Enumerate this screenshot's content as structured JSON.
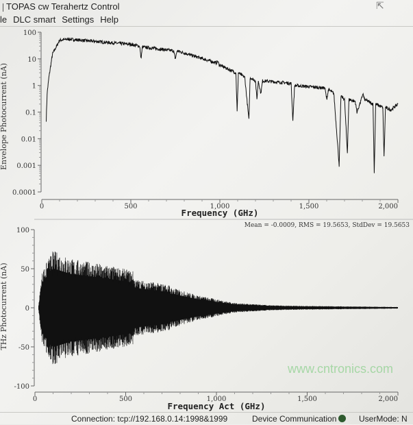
{
  "window": {
    "title": "TOPAS cw Terahertz Control"
  },
  "menu": [
    "le",
    "DLC smart",
    "Settings",
    "Help"
  ],
  "status": {
    "connection": "Connection: tcp://192.168.0.14:1998&1999",
    "device": "Device Communication",
    "usermode": "UserMode: N",
    "led_color": "#2e5a2e"
  },
  "watermark": "www.cntronics.com",
  "chart_data": [
    {
      "type": "line",
      "xlabel": "Frequency (GHz)",
      "ylabel": "Envelope Photocurrent (nA)",
      "yscale": "log",
      "xlim": [
        0,
        2000
      ],
      "ylim": [
        0.0001,
        100
      ],
      "xticks": [
        "0",
        "500",
        "1,000",
        "1,500",
        "2,000"
      ],
      "yticks": [
        "100",
        "10",
        "1",
        "0.1",
        "0.01",
        "0.001",
        "0.0001"
      ],
      "grid": false,
      "series": [
        {
          "x": [
            25,
            30,
            40,
            60,
            100,
            150,
            300,
            500,
            550,
            557,
            565,
            740,
            750,
            760,
            980,
            988,
            996,
            1050,
            1090,
            1097,
            1104,
            1140,
            1163,
            1170,
            1200,
            1208,
            1216,
            1230,
            1240,
            1400,
            1410,
            1420,
            1590,
            1600,
            1610,
            1640,
            1670,
            1680,
            1700,
            1716,
            1725,
            1760,
            1770,
            1795,
            1803,
            1812,
            1860,
            1867,
            1875,
            1915,
            1922,
            1930,
            1960,
            2000
          ],
          "y": [
            0.05,
            0.5,
            2,
            15,
            50,
            55,
            45,
            35,
            30,
            10,
            28,
            20,
            10,
            20,
            7,
            8,
            6,
            4,
            3,
            0.1,
            3,
            2,
            0.05,
            2,
            1.5,
            0.3,
            1.5,
            0.5,
            1.5,
            1.2,
            0.05,
            1,
            0.8,
            0.3,
            0.7,
            0.5,
            0.001,
            0.4,
            0.3,
            0.003,
            0.3,
            0.25,
            0.1,
            0.3,
            0.5,
            0.3,
            0.2,
            0.0005,
            0.2,
            0.15,
            0.002,
            0.15,
            0.12,
            0.2
          ]
        }
      ]
    },
    {
      "type": "area",
      "xlabel": "Frequency Act (GHz)",
      "ylabel": "THz Photocurrent (nA)",
      "xlim": [
        0,
        2000
      ],
      "ylim": [
        -100,
        100
      ],
      "xticks": [
        "0",
        "500",
        "1,000",
        "1,500",
        "2,000"
      ],
      "yticks": [
        "100",
        "50",
        "0",
        "-50",
        "-100"
      ],
      "grid": false,
      "annotation": "Mean = -0.0009, RMS = 19.5653, StdDev = 19.5653",
      "envelope": {
        "x": [
          20,
          40,
          80,
          100,
          200,
          400,
          540,
          550,
          740,
          750,
          900,
          1100,
          1300,
          1600,
          2000
        ],
        "amplitude": [
          3,
          45,
          62,
          70,
          60,
          52,
          45,
          35,
          28,
          25,
          15,
          6,
          3,
          2,
          1
        ]
      }
    }
  ]
}
